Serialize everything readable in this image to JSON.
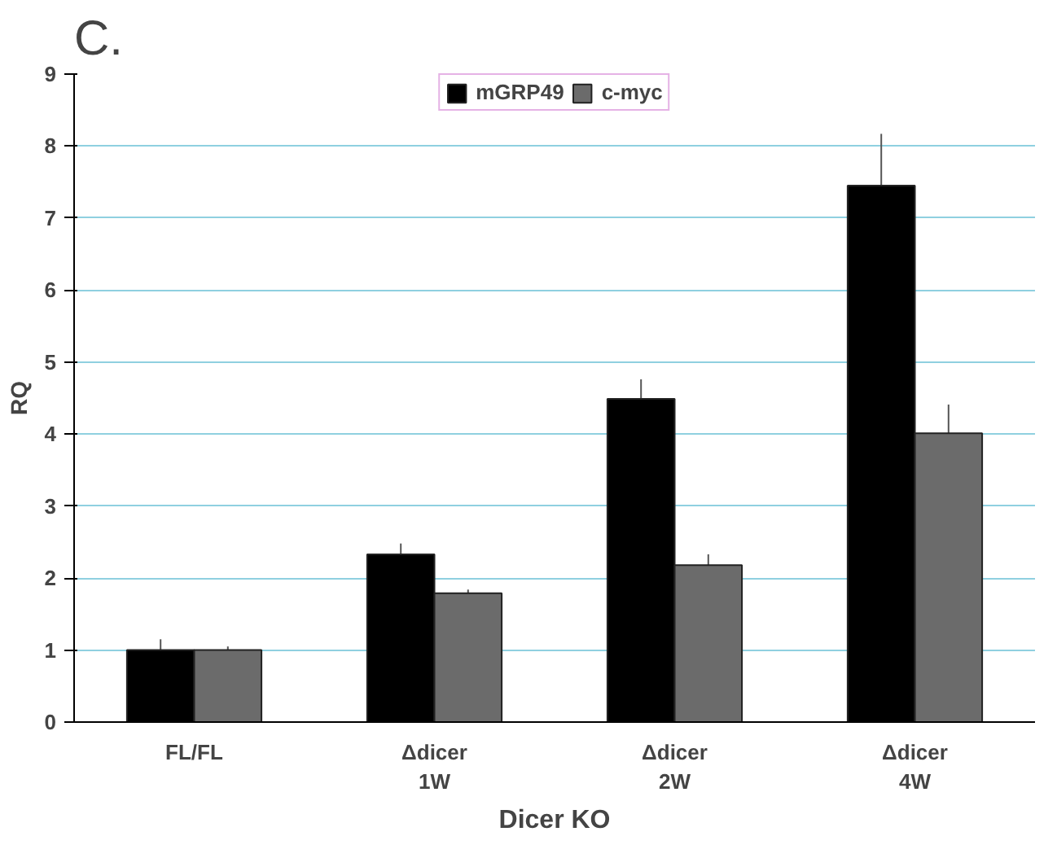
{
  "chart_data": {
    "type": "bar",
    "ylabel": "RQ",
    "xlabel": "Dicer KO",
    "annotations": [
      "C."
    ],
    "categories": [
      "FL/FL",
      "Δdicer\n1W",
      "Δdicer\n2W",
      "Δdicer\n4W"
    ],
    "series": [
      {
        "name": "mGRP49",
        "color": "#000000",
        "values": [
          1.0,
          2.33,
          4.49,
          7.45
        ],
        "errors": [
          0.15,
          0.15,
          0.27,
          0.72
        ]
      },
      {
        "name": "c-myc",
        "color": "#6b6b6b",
        "values": [
          1.0,
          1.79,
          2.18,
          4.01
        ],
        "errors": [
          0.05,
          0.05,
          0.15,
          0.4
        ]
      }
    ],
    "ylim": [
      0,
      9
    ],
    "yticks": [
      0,
      1,
      2,
      3,
      4,
      5,
      6,
      7,
      8,
      9
    ],
    "grid": "y",
    "legend": "top"
  }
}
